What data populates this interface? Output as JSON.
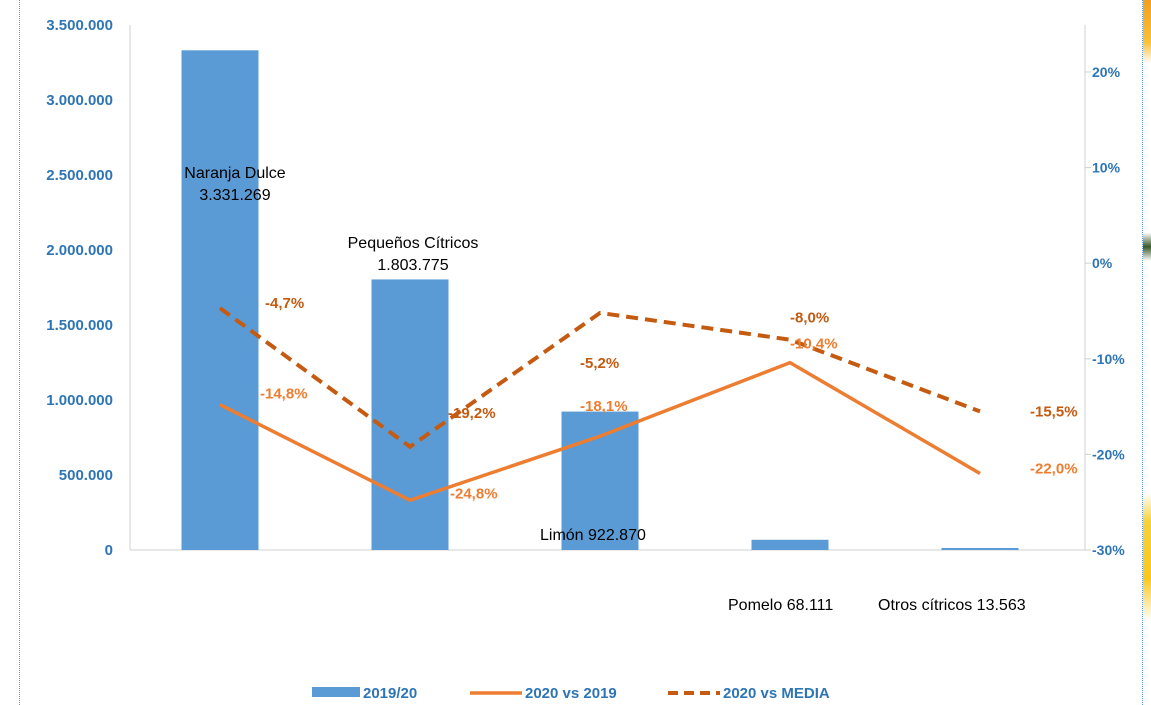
{
  "chart_data": {
    "type": "bar",
    "categories": [
      "Naranja Dulce",
      "Pequeños Cítricos",
      "Limón",
      "Pomelo",
      "Otros cítricos"
    ],
    "bar_labels": [
      "Naranja Dulce\n3.331.269",
      "Pequeños Cítricos\n1.803.775",
      "Limón 922.870",
      "Pomelo 68.111",
      "Otros cítricos 13.563"
    ],
    "series": [
      {
        "name": "2019/20",
        "type": "bar",
        "axis": "left",
        "color": "#5b9bd5",
        "values": [
          3331269,
          1803775,
          922870,
          68111,
          13563
        ]
      },
      {
        "name": "2020 vs 2019",
        "type": "line",
        "axis": "right",
        "color": "#ed7d31",
        "style": "solid",
        "values": [
          -14.8,
          -24.8,
          -18.1,
          -10.4,
          -22.0
        ],
        "labels": [
          "-14,8%",
          "-24,8%",
          "-18,1%",
          "-10,4%",
          "-22,0%"
        ]
      },
      {
        "name": "2020 vs MEDIA",
        "type": "line",
        "axis": "right",
        "color": "#c55a11",
        "style": "dashed",
        "values": [
          -4.7,
          -19.2,
          -5.2,
          -8.0,
          -15.5
        ],
        "labels": [
          "-4,7%",
          "-19,2%",
          "-5,2%",
          "-8,0%",
          "-15,5%"
        ]
      }
    ],
    "y_left": {
      "min": 0,
      "max": 3500000,
      "ticks": [
        "0",
        "500.000",
        "1.000.000",
        "1.500.000",
        "2.000.000",
        "2.500.000",
        "3.000.000",
        "3.500.000"
      ]
    },
    "y_right": {
      "min": -30,
      "max": 20,
      "ticks": [
        "-30%",
        "-20%",
        "-10%",
        "0%",
        "10%",
        "20%"
      ]
    },
    "title": "",
    "xlabel": "",
    "ylabel": "",
    "grid": false,
    "legend_position": "bottom",
    "axis_label_color": "#2e75b6",
    "bar_label_color": "#000000"
  }
}
